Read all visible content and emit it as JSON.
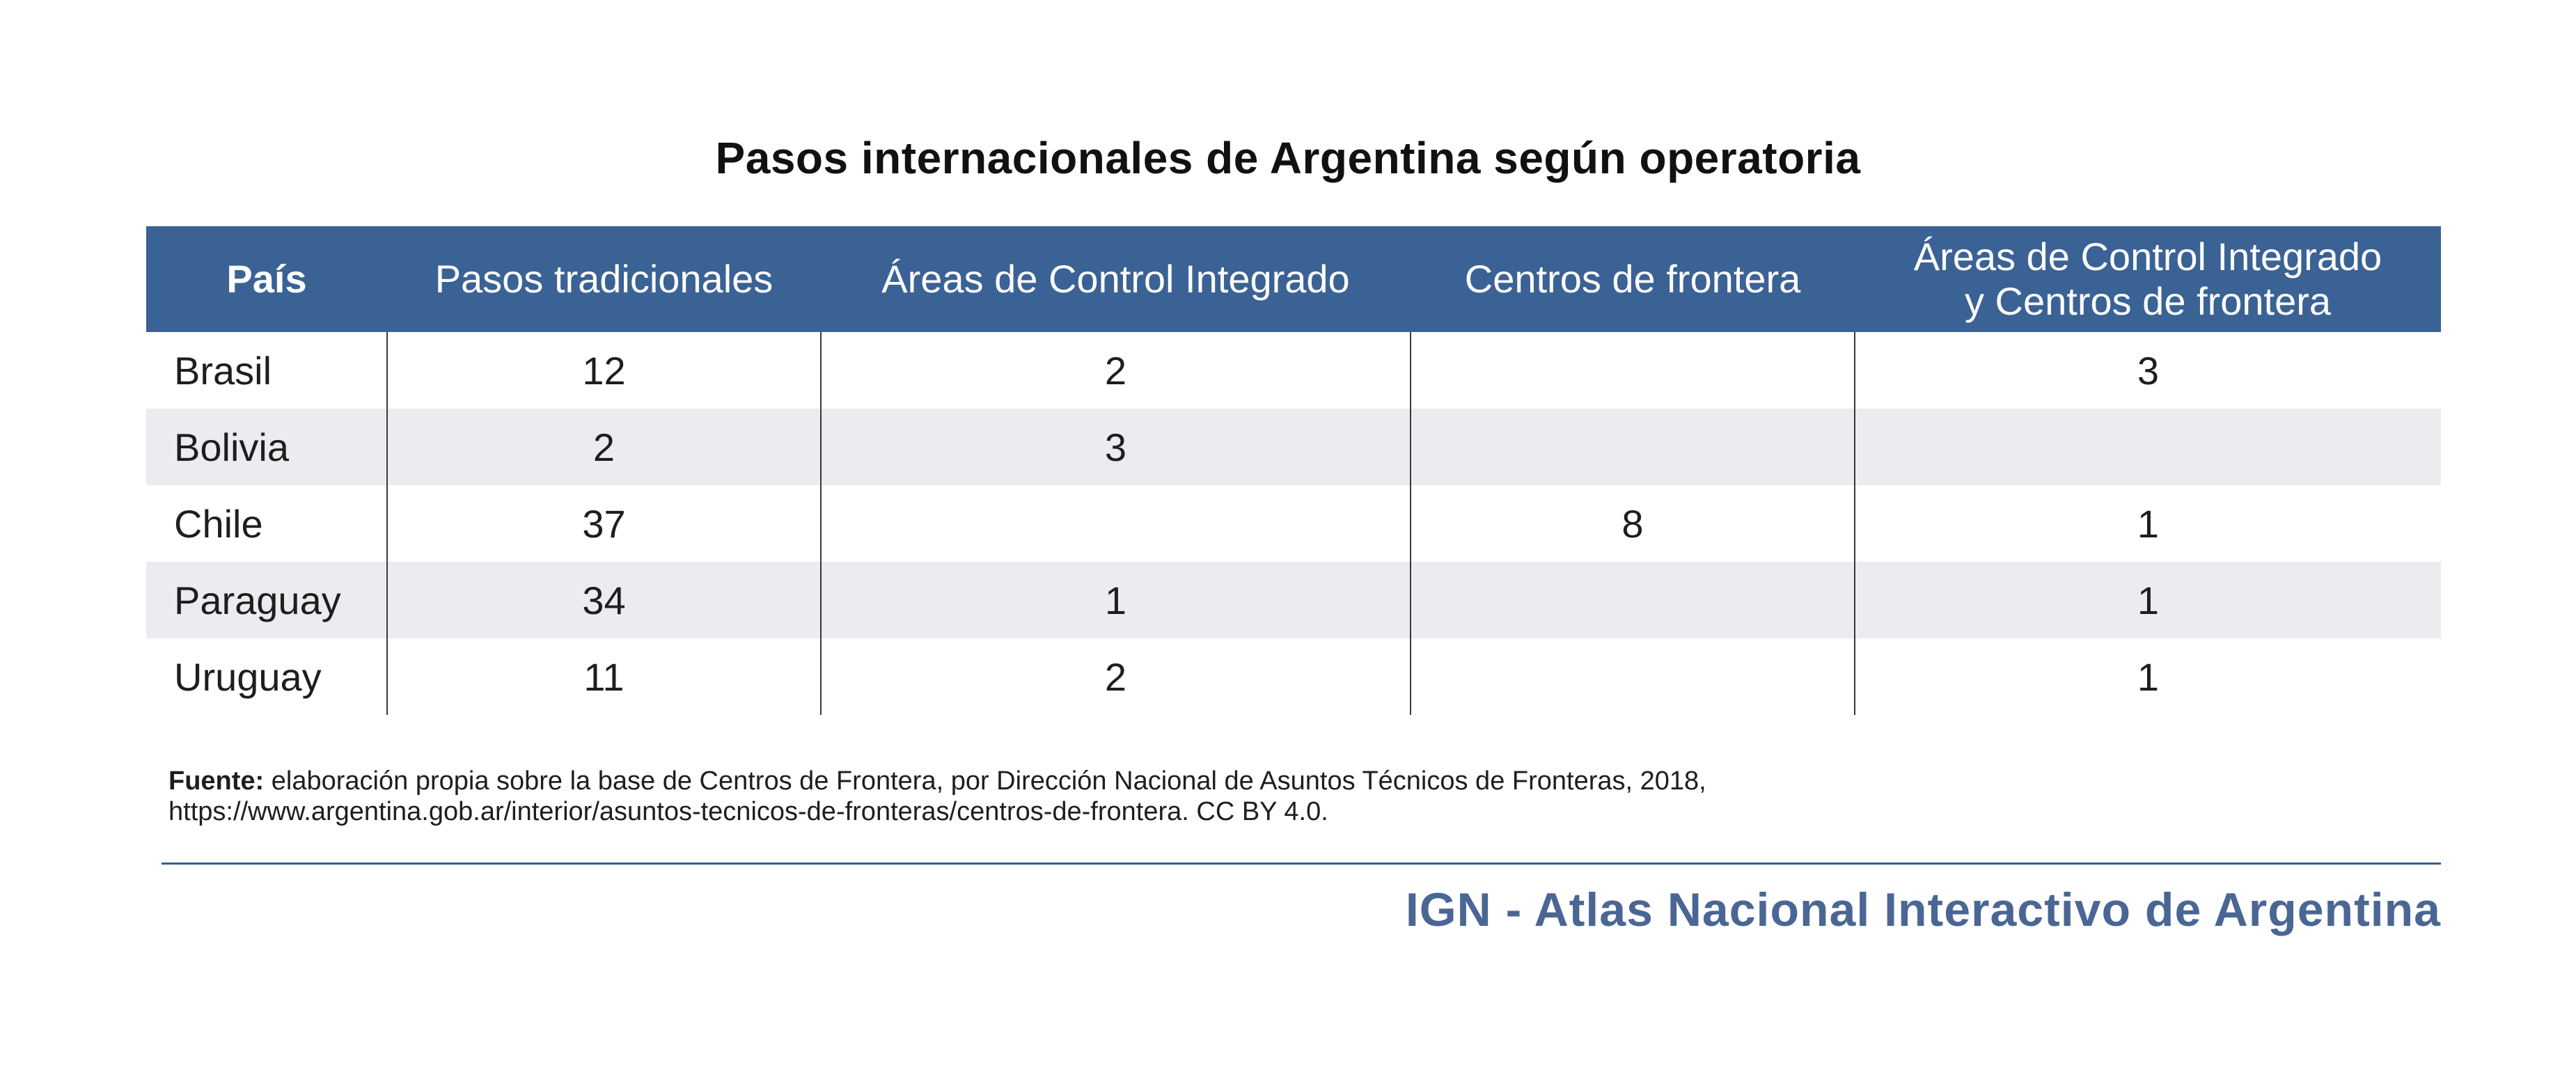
{
  "chart_data": {
    "type": "table",
    "title": "Pasos internacionales de Argentina según operatoria",
    "columns": [
      "País",
      "Pasos tradicionales",
      "Áreas de Control Integrado",
      "Centros de frontera",
      "Áreas de Control Integrado y Centros de frontera"
    ],
    "rows": [
      {
        "country": "Brasil",
        "pasos": "12",
        "aci": "2",
        "cf": "",
        "aci_cf": "3"
      },
      {
        "country": "Bolivia",
        "pasos": "2",
        "aci": "3",
        "cf": "",
        "aci_cf": ""
      },
      {
        "country": "Chile",
        "pasos": "37",
        "aci": "",
        "cf": "8",
        "aci_cf": "1"
      },
      {
        "country": "Paraguay",
        "pasos": "34",
        "aci": "1",
        "cf": "",
        "aci_cf": "1"
      },
      {
        "country": "Uruguay",
        "pasos": "11",
        "aci": "2",
        "cf": "",
        "aci_cf": "1"
      }
    ]
  },
  "header": {
    "col1": "País",
    "col2": "Pasos tradicionales",
    "col3": "Áreas de Control Integrado",
    "col4": "Centros de frontera",
    "col5_line1": "Áreas de Control Integrado",
    "col5_line2": "y Centros de frontera"
  },
  "source": {
    "label": "Fuente:",
    "line1": "elaboración propia sobre la base de Centros de Frontera, por Dirección Nacional de Asuntos Técnicos de Fronteras, 2018,",
    "line2": "https://www.argentina.gob.ar/interior/asuntos-tecnicos-de-fronteras/centros-de-frontera. CC BY 4.0."
  },
  "brand": "IGN - Atlas Nacional Interactivo de Argentina",
  "colors": {
    "header_bg": "#3b6294",
    "alt_row_bg": "#ecebf0",
    "brand": "#4a6694"
  }
}
